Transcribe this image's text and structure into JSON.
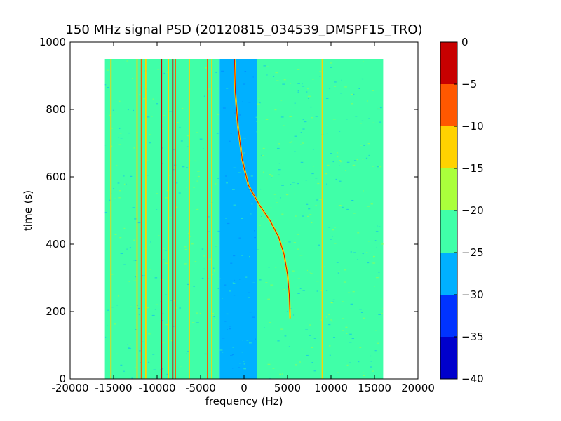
{
  "chart_data": {
    "type": "heatmap",
    "title": "150 MHz signal PSD (20120815_034539_DMSPF15_TRO)",
    "xlabel": "frequency (Hz)",
    "ylabel": "time (s)",
    "xlim": [
      -20000,
      20000
    ],
    "ylim": [
      0,
      1000
    ],
    "x_ticks": [
      -20000,
      -15000,
      -10000,
      -5000,
      0,
      5000,
      10000,
      15000,
      20000
    ],
    "y_ticks": [
      0,
      200,
      400,
      600,
      800,
      1000
    ],
    "grid": false,
    "data_extent": {
      "x": [
        -16000,
        16000
      ],
      "y": [
        0,
        950
      ]
    },
    "colorbar": {
      "levels": [
        -40,
        -35,
        -30,
        -25,
        -20,
        -15,
        -10,
        -5,
        0
      ],
      "colors": [
        "#0000cc",
        "#0033ff",
        "#00b0ff",
        "#40ffa8",
        "#aaff3c",
        "#ffd200",
        "#ff5800",
        "#c80000"
      ],
      "ticks": [
        0,
        -5,
        -10,
        -15,
        -20,
        -25,
        -30,
        -35,
        -40
      ]
    },
    "regions": [
      {
        "x": [
          -16000,
          -12500
        ],
        "y": [
          0,
          950
        ],
        "level": -25
      },
      {
        "x": [
          -12500,
          -2800
        ],
        "y": [
          0,
          950
        ],
        "level": -25
      },
      {
        "x": [
          -2800,
          1500
        ],
        "y": [
          0,
          950
        ],
        "level": -30
      },
      {
        "x": [
          1500,
          16000
        ],
        "y": [
          0,
          950
        ],
        "level": -25
      }
    ],
    "vertical_lines": [
      {
        "x": -15300,
        "level": -15
      },
      {
        "x": -12300,
        "level": -15
      },
      {
        "x": -11800,
        "level": -10
      },
      {
        "x": -11300,
        "level": -15
      },
      {
        "x": -9500,
        "level": -5
      },
      {
        "x": -8700,
        "level": -15
      },
      {
        "x": -8200,
        "level": -5
      },
      {
        "x": -7900,
        "level": -10
      },
      {
        "x": -6300,
        "level": -15
      },
      {
        "x": -4200,
        "level": -10
      },
      {
        "x": -3700,
        "level": -15
      },
      {
        "x": 9000,
        "level": -15
      }
    ],
    "trace": {
      "level": -15,
      "points": [
        {
          "x": -1100,
          "y": 950
        },
        {
          "x": -1000,
          "y": 850
        },
        {
          "x": -700,
          "y": 750
        },
        {
          "x": -200,
          "y": 650
        },
        {
          "x": 500,
          "y": 575
        },
        {
          "x": 1800,
          "y": 515
        },
        {
          "x": 3000,
          "y": 470
        },
        {
          "x": 4000,
          "y": 420
        },
        {
          "x": 4600,
          "y": 370
        },
        {
          "x": 5000,
          "y": 310
        },
        {
          "x": 5200,
          "y": 250
        },
        {
          "x": 5300,
          "y": 180
        }
      ]
    }
  }
}
